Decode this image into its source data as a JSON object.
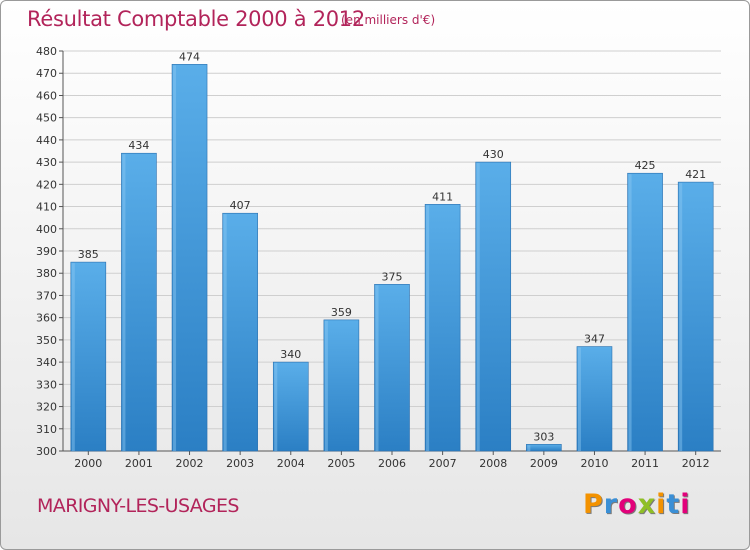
{
  "header": {
    "title": "Résultat Comptable 2000 à 2012",
    "subtitle": "(en milliers d'€)"
  },
  "footer": {
    "location": "MARIGNY-LES-USAGES",
    "logo_text": "Proxiti"
  },
  "colors": {
    "title": "#b2245a",
    "bar_light": "#5aaee9",
    "bar_dark": "#2b7fc4",
    "grid": "#cfcfcf"
  },
  "chart_data": {
    "type": "bar",
    "title": "Résultat Comptable 2000 à 2012",
    "subtitle": "(en milliers d'€)",
    "xlabel": "",
    "ylabel": "",
    "categories": [
      "2000",
      "2001",
      "2002",
      "2003",
      "2004",
      "2005",
      "2006",
      "2007",
      "2008",
      "2009",
      "2010",
      "2011",
      "2012"
    ],
    "values": [
      385,
      434,
      474,
      407,
      340,
      359,
      375,
      411,
      430,
      303,
      347,
      425,
      421
    ],
    "ylim": [
      300,
      480
    ],
    "yticks": [
      300,
      310,
      320,
      330,
      340,
      350,
      360,
      370,
      380,
      390,
      400,
      410,
      420,
      430,
      440,
      450,
      460,
      470,
      480
    ],
    "grid": true,
    "legend": "none"
  }
}
